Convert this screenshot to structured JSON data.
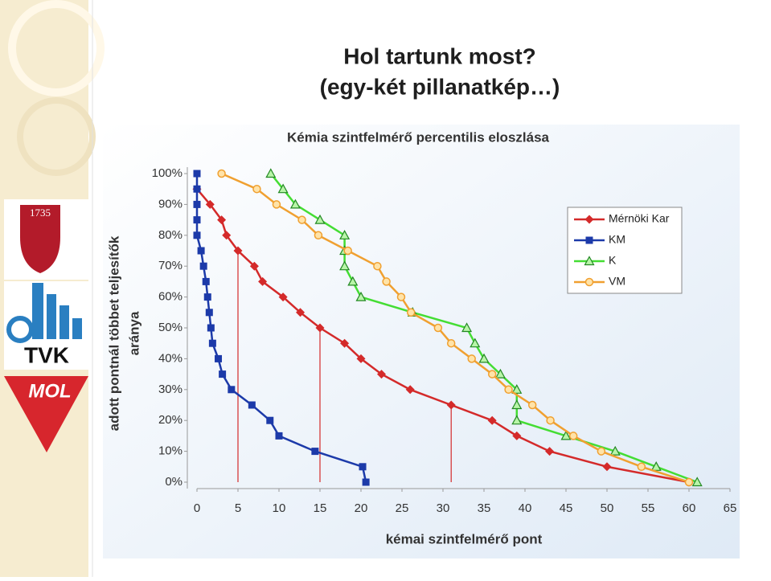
{
  "slide": {
    "title_lines": [
      "Hol tartunk most?",
      "(egy-két pillanatkép…)"
    ],
    "logos": [
      "1735",
      "TVK",
      "MOL"
    ]
  },
  "chart_data": {
    "type": "line",
    "title": "Kémia szintfelmérő percentilis eloszlása",
    "x_label": "kémai szintfelmérő pont",
    "y_label_lines": [
      "adott pontnál többet teljesítők",
      "aránya"
    ],
    "xlim": [
      0,
      65
    ],
    "xticks": [
      0,
      5,
      10,
      15,
      20,
      25,
      30,
      35,
      40,
      45,
      50,
      55,
      60,
      65
    ],
    "ylim": [
      0,
      100
    ],
    "yticks": [
      {
        "value": 0,
        "label": "0%"
      },
      {
        "value": 10,
        "label": "10%"
      },
      {
        "value": 20,
        "label": "20%"
      },
      {
        "value": 30,
        "label": "30%"
      },
      {
        "value": 40,
        "label": "40%"
      },
      {
        "value": 50,
        "label": "50%"
      },
      {
        "value": 60,
        "label": "60%"
      },
      {
        "value": 70,
        "label": "70%"
      },
      {
        "value": 80,
        "label": "80%"
      },
      {
        "value": 90,
        "label": "90%"
      },
      {
        "value": 100,
        "label": "100%"
      }
    ],
    "series": [
      {
        "name": "Mérnöki Kar",
        "color": "#d42a2a",
        "marker": "diamond",
        "x": [
          0,
          1.6,
          3,
          3.6,
          5,
          7,
          8,
          10.5,
          12.6,
          15,
          18,
          20,
          22.5,
          26,
          31,
          36,
          39,
          43,
          50,
          60
        ],
        "values": [
          95,
          90,
          85,
          80,
          75,
          70,
          65,
          60,
          55,
          50,
          45,
          40,
          35,
          30,
          25,
          20,
          15,
          10,
          5,
          0
        ]
      },
      {
        "name": "KM",
        "color": "#1c3aa9",
        "marker": "square",
        "x": [
          0,
          0,
          0,
          0,
          0,
          0.5,
          0.8,
          1.1,
          1.3,
          1.5,
          1.7,
          1.9,
          2.6,
          3.1,
          4.2,
          6.7,
          8.9,
          10,
          14.4,
          20.2,
          20.6
        ],
        "values": [
          100,
          95,
          90,
          85,
          80,
          75,
          70,
          65,
          60,
          55,
          50,
          45,
          40,
          35,
          30,
          25,
          20,
          15,
          10,
          5,
          0
        ]
      },
      {
        "name": "K",
        "color": "#44dd33",
        "marker": "triangle",
        "x": [
          9,
          10.5,
          12,
          15,
          18,
          18,
          18,
          19,
          20,
          26.3,
          32.9,
          33.9,
          35,
          37,
          39,
          39,
          39,
          45,
          51,
          56,
          61
        ],
        "values": [
          100,
          95,
          90,
          85,
          80,
          75,
          70,
          65,
          60,
          55,
          50,
          45,
          40,
          35,
          30,
          25,
          20,
          15,
          10,
          5,
          0
        ]
      },
      {
        "name": "VM",
        "color": "#f0a030",
        "marker": "circle",
        "x": [
          3,
          7.3,
          9.7,
          12.8,
          14.8,
          18.4,
          22,
          23.1,
          24.9,
          26.1,
          29.4,
          31,
          33.5,
          36,
          38,
          40.9,
          43.1,
          45.9,
          49.3,
          54.2,
          60
        ],
        "values": [
          100,
          95,
          90,
          85,
          80,
          75,
          70,
          65,
          60,
          55,
          50,
          45,
          40,
          35,
          30,
          25,
          20,
          15,
          10,
          5,
          0
        ]
      }
    ]
  }
}
